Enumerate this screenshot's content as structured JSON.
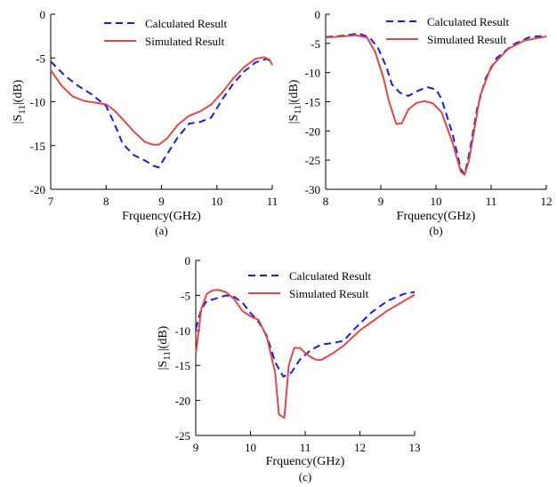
{
  "colors": {
    "calculated": "#1c1cd6",
    "simulated": "#e04848",
    "axis": "#000000"
  },
  "chart_data": [
    {
      "type": "line",
      "panel_label": "(a)",
      "xlabel": "Frquency(GHz)",
      "ylabel_main": "|S",
      "ylabel_sub": "11",
      "ylabel_rest": "|(dB)",
      "xlim": [
        7,
        11
      ],
      "ylim": [
        -20,
        0
      ],
      "xticks": [
        7,
        8,
        9,
        10,
        11
      ],
      "yticks": [
        0,
        -5,
        -10,
        -15,
        -20
      ],
      "legend": "top-center",
      "series": [
        {
          "name": "Calculated Result",
          "style": "dashed",
          "color": "#1c1cd6",
          "x": [
            7,
            7.25,
            7.5,
            7.75,
            8,
            8.15,
            8.3,
            8.5,
            8.7,
            8.85,
            8.95,
            9.1,
            9.3,
            9.5,
            9.7,
            9.9,
            10.1,
            10.3,
            10.5,
            10.7,
            10.9,
            11
          ],
          "y": [
            -5.4,
            -7.0,
            -8.2,
            -9.2,
            -10.5,
            -12.5,
            -14.8,
            -16.1,
            -16.7,
            -17.3,
            -17.5,
            -16.0,
            -14.0,
            -12.5,
            -12.3,
            -11.8,
            -9.7,
            -7.9,
            -6.5,
            -5.5,
            -5.1,
            -5.5
          ]
        },
        {
          "name": "Simulated Result",
          "style": "solid",
          "color": "#e04848",
          "x": [
            7,
            7.2,
            7.4,
            7.6,
            7.8,
            8,
            8.15,
            8.3,
            8.5,
            8.7,
            8.85,
            8.95,
            9.1,
            9.3,
            9.5,
            9.7,
            9.9,
            10.1,
            10.3,
            10.5,
            10.7,
            10.85,
            10.95,
            11
          ],
          "y": [
            -6.4,
            -8.2,
            -9.4,
            -9.9,
            -10.1,
            -10.3,
            -11.0,
            -12.0,
            -13.4,
            -14.6,
            -14.9,
            -14.9,
            -14.2,
            -12.6,
            -11.6,
            -11.1,
            -10.3,
            -8.9,
            -7.3,
            -6.0,
            -5.1,
            -4.9,
            -5.2,
            -5.8
          ]
        }
      ]
    },
    {
      "type": "line",
      "panel_label": "(b)",
      "xlabel": "Frquency(GHz)",
      "ylabel_main": "|S",
      "ylabel_sub": "11",
      "ylabel_rest": "|(dB)",
      "xlim": [
        8,
        12
      ],
      "ylim": [
        -30,
        0
      ],
      "xticks": [
        8,
        9,
        10,
        11,
        12
      ],
      "yticks": [
        0,
        -5,
        -10,
        -15,
        -20,
        -25,
        -30
      ],
      "legend": "top-center",
      "series": [
        {
          "name": "Calculated Result",
          "style": "dashed",
          "color": "#1c1cd6",
          "x": [
            8,
            8.3,
            8.6,
            8.8,
            8.95,
            9.1,
            9.2,
            9.35,
            9.5,
            9.7,
            9.85,
            10.0,
            10.1,
            10.3,
            10.45,
            10.52,
            10.6,
            10.75,
            10.9,
            11.1,
            11.4,
            11.7,
            12
          ],
          "y": [
            -3.9,
            -3.7,
            -3.3,
            -4.0,
            -5.8,
            -9.0,
            -12.0,
            -13.5,
            -14.0,
            -13.0,
            -12.5,
            -12.9,
            -14.5,
            -20.5,
            -26.5,
            -27.5,
            -24.0,
            -16.0,
            -11.0,
            -7.5,
            -5.2,
            -3.9,
            -3.7
          ]
        },
        {
          "name": "Simulated Result",
          "style": "solid",
          "color": "#e04848",
          "x": [
            8,
            8.3,
            8.55,
            8.75,
            8.9,
            9.05,
            9.15,
            9.28,
            9.38,
            9.5,
            9.65,
            9.8,
            9.95,
            10.1,
            10.3,
            10.45,
            10.52,
            10.6,
            10.8,
            11.0,
            11.3,
            11.6,
            12
          ],
          "y": [
            -4.0,
            -3.8,
            -3.6,
            -4.0,
            -6.5,
            -11.0,
            -15.0,
            -18.8,
            -18.7,
            -16.3,
            -15.2,
            -14.9,
            -15.3,
            -16.8,
            -22.0,
            -27.0,
            -27.5,
            -25.0,
            -14.0,
            -9.0,
            -6.0,
            -4.5,
            -3.8
          ]
        }
      ]
    },
    {
      "type": "line",
      "panel_label": "(c)",
      "xlabel": "Frquency(GHz)",
      "ylabel_main": "|S",
      "ylabel_sub": "11",
      "ylabel_rest": "|(dB)",
      "xlim": [
        9,
        13
      ],
      "ylim": [
        -25,
        0
      ],
      "xticks": [
        9,
        10,
        11,
        12,
        13
      ],
      "yticks": [
        0,
        -5,
        -10,
        -15,
        -20,
        -25
      ],
      "legend": "top-center",
      "series": [
        {
          "name": "Calculated Result",
          "style": "dashed",
          "color": "#1c1cd6",
          "x": [
            9,
            9.1,
            9.2,
            9.35,
            9.55,
            9.7,
            9.85,
            10.0,
            10.15,
            10.3,
            10.45,
            10.6,
            10.75,
            10.9,
            11.1,
            11.3,
            11.5,
            11.7,
            11.9,
            12.2,
            12.5,
            12.8,
            13
          ],
          "y": [
            -9.8,
            -7.0,
            -5.8,
            -5.5,
            -5.0,
            -5.2,
            -6.0,
            -7.5,
            -8.8,
            -10.8,
            -14.5,
            -16.6,
            -16.0,
            -14.2,
            -12.8,
            -12.0,
            -11.8,
            -11.5,
            -9.8,
            -7.5,
            -5.8,
            -4.8,
            -4.5
          ]
        },
        {
          "name": "Simulated Result",
          "style": "solid",
          "color": "#e04848",
          "x": [
            9,
            9.1,
            9.2,
            9.3,
            9.4,
            9.55,
            9.7,
            9.85,
            10.0,
            10.15,
            10.3,
            10.45,
            10.52,
            10.62,
            10.7,
            10.8,
            10.9,
            11.0,
            11.1,
            11.2,
            11.3,
            11.5,
            11.7,
            12.0,
            12.5,
            13
          ],
          "y": [
            -13.5,
            -7.0,
            -4.8,
            -4.3,
            -4.2,
            -4.5,
            -5.5,
            -7.2,
            -8.0,
            -8.5,
            -11.0,
            -16.0,
            -22.0,
            -22.5,
            -15.0,
            -12.5,
            -12.5,
            -13.2,
            -13.8,
            -14.2,
            -14.2,
            -13.3,
            -12.2,
            -10.0,
            -7.2,
            -4.9
          ]
        }
      ]
    }
  ]
}
